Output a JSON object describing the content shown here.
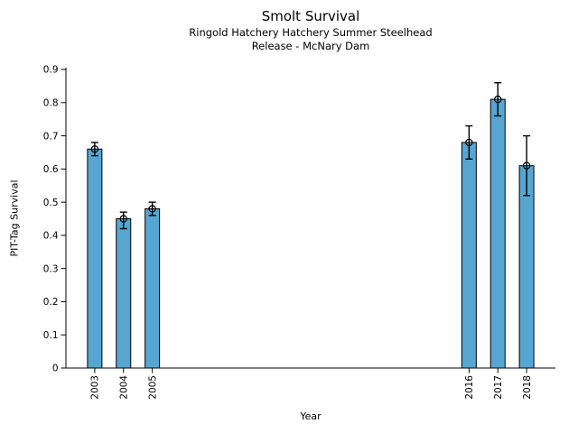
{
  "chart_data": {
    "type": "bar",
    "title": "Smolt Survival",
    "subtitle1": "Ringold Hatchery Hatchery Summer Steelhead",
    "subtitle2": "Release - McNary Dam",
    "xlabel": "Year",
    "ylabel": "PIT-Tag Survival",
    "categories": [
      2003,
      2004,
      2005,
      2016,
      2017,
      2018
    ],
    "values": [
      0.66,
      0.45,
      0.48,
      0.68,
      0.81,
      0.61
    ],
    "error_low": [
      0.64,
      0.42,
      0.46,
      0.63,
      0.76,
      0.52
    ],
    "error_high": [
      0.68,
      0.47,
      0.5,
      0.73,
      0.86,
      0.7
    ],
    "marker": "open-circle",
    "xlim": [
      2002,
      2019
    ],
    "ylim": [
      0,
      0.9
    ],
    "yticks": [
      "0",
      "0.1",
      "0.2",
      "0.3",
      "0.4",
      "0.5",
      "0.6",
      "0.7",
      "0.8",
      "0.9"
    ],
    "x_tick_label_rotation_deg": 90,
    "grid": false,
    "legend": null,
    "bar_color": "#57a5d1",
    "bar_edge_color": "#000000",
    "error_color": "#000000",
    "background_color": "#ffffff"
  }
}
